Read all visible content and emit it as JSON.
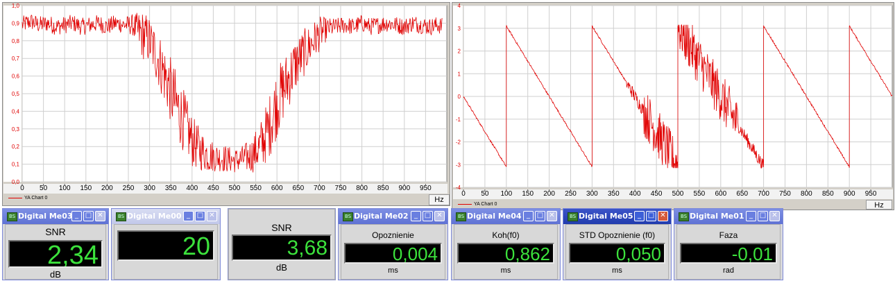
{
  "chart_data": [
    {
      "type": "line",
      "xlim": [
        0,
        1000
      ],
      "ylim": [
        0,
        1.0
      ],
      "x_ticks": [
        0,
        50,
        100,
        150,
        200,
        250,
        300,
        350,
        400,
        450,
        500,
        550,
        600,
        650,
        700,
        750,
        800,
        850,
        900,
        950
      ],
      "x_tick_labels": [
        "0",
        "50",
        "100",
        "150",
        "200",
        "250",
        "300",
        "350",
        "400",
        "450",
        "500",
        "550",
        "600",
        "650",
        "700",
        "750",
        "800",
        "850",
        "900",
        "950"
      ],
      "y_ticks": [
        0,
        0.1,
        0.2,
        0.3,
        0.4,
        0.5,
        0.6,
        0.7,
        0.8,
        0.9,
        1.0
      ],
      "y_tick_labels": [
        "0,0",
        "0,1",
        "0,2",
        "0,3",
        "0,4",
        "0,5",
        "0,6",
        "0,7",
        "0,8",
        "0,9",
        "1,0"
      ],
      "grid": true,
      "legend": "bottom-left",
      "x_unit": "Hz",
      "series": [
        {
          "name": "YA Chart 0",
          "color": "#e00000",
          "x": [
            0,
            20,
            40,
            60,
            80,
            100,
            120,
            140,
            160,
            180,
            200,
            220,
            240,
            260,
            270,
            280,
            290,
            300,
            320,
            340,
            360,
            380,
            400,
            420,
            440,
            460,
            480,
            500,
            520,
            540,
            560,
            580,
            600,
            620,
            640,
            660,
            680,
            700,
            720,
            740,
            760,
            780,
            800,
            820,
            840,
            860,
            880,
            900,
            920,
            940,
            960,
            980,
            990
          ],
          "y": [
            0.89,
            0.91,
            0.89,
            0.9,
            0.88,
            0.89,
            0.9,
            0.88,
            0.89,
            0.9,
            0.88,
            0.9,
            0.89,
            0.89,
            0.86,
            0.84,
            0.82,
            0.8,
            0.7,
            0.58,
            0.45,
            0.35,
            0.23,
            0.18,
            0.15,
            0.14,
            0.13,
            0.12,
            0.13,
            0.15,
            0.2,
            0.3,
            0.45,
            0.55,
            0.65,
            0.72,
            0.78,
            0.84,
            0.87,
            0.88,
            0.89,
            0.88,
            0.9,
            0.88,
            0.89,
            0.9,
            0.89,
            0.88,
            0.9,
            0.89,
            0.88,
            0.89,
            0.88
          ],
          "noise": [
            0.05,
            0.05,
            0.05,
            0.05,
            0.05,
            0.05,
            0.05,
            0.05,
            0.05,
            0.05,
            0.05,
            0.05,
            0.05,
            0.06,
            0.1,
            0.14,
            0.14,
            0.14,
            0.16,
            0.18,
            0.2,
            0.18,
            0.15,
            0.12,
            0.1,
            0.08,
            0.08,
            0.07,
            0.08,
            0.1,
            0.14,
            0.18,
            0.2,
            0.18,
            0.16,
            0.14,
            0.12,
            0.1,
            0.06,
            0.05,
            0.05,
            0.05,
            0.05,
            0.05,
            0.05,
            0.05,
            0.05,
            0.05,
            0.05,
            0.05,
            0.05,
            0.05,
            0.05
          ]
        }
      ]
    },
    {
      "type": "line",
      "xlim": [
        0,
        1000
      ],
      "ylim": [
        -4,
        4
      ],
      "x_ticks": [
        0,
        50,
        100,
        150,
        200,
        250,
        300,
        350,
        400,
        450,
        500,
        550,
        600,
        650,
        700,
        750,
        800,
        850,
        900,
        950
      ],
      "x_tick_labels": [
        "0",
        "50",
        "100",
        "150",
        "200",
        "250",
        "300",
        "350",
        "400",
        "450",
        "500",
        "550",
        "600",
        "650",
        "700",
        "750",
        "800",
        "850",
        "900",
        "950"
      ],
      "y_ticks": [
        -4,
        -3,
        -2,
        -1,
        0,
        1,
        2,
        3,
        4
      ],
      "y_tick_labels": [
        "-4",
        "-3",
        "-2",
        "-1",
        "0",
        "1",
        "2",
        "3",
        "4"
      ],
      "grid": true,
      "legend": "bottom-left",
      "x_unit": "Hz",
      "series": [
        {
          "name": "YA Chart 0",
          "color": "#e00000",
          "x": [
            0,
            100,
            100,
            300,
            300,
            500,
            500,
            700,
            700,
            900,
            900,
            1000
          ],
          "y": [
            0,
            -3.1,
            3.1,
            -3.1,
            3.1,
            -3.1,
            3.1,
            -3.1,
            3.1,
            -3.1,
            3.1,
            0
          ]
        }
      ]
    }
  ],
  "meters": [
    {
      "title": "Digital Me03",
      "label": "SNR",
      "value": "2,34",
      "unit": "dB",
      "state": "normal"
    },
    {
      "title": "Digital Me00",
      "label": "",
      "value": "20",
      "unit": "",
      "state": "faded"
    },
    {
      "title": "",
      "label": "SNR",
      "value": "3,68",
      "unit": "dB",
      "state": "frameless"
    },
    {
      "title": "Digital Me02",
      "label": "Opoznienie",
      "value": "0,004",
      "unit": "ms",
      "state": "normal"
    },
    {
      "title": "Digital Me04",
      "label": "Koh(f0)",
      "value": "0,862",
      "unit": "ms",
      "state": "normal"
    },
    {
      "title": "Digital Me05",
      "label": "STD Opoznienie (f0)",
      "value": "0,050",
      "unit": "ms",
      "state": "active"
    },
    {
      "title": "Digital Me01",
      "label": "Faza",
      "value": "-0,01",
      "unit": "rad",
      "state": "normal"
    }
  ],
  "window_buttons": {
    "minimize": "_",
    "maximize": "□",
    "close": "✕"
  },
  "app_icon_text": "BS",
  "colors": {
    "trace": "#e00000",
    "display_digits": "#3ce23c",
    "titlebar": "#5f72d4",
    "titlebar_active": "#213cae"
  }
}
